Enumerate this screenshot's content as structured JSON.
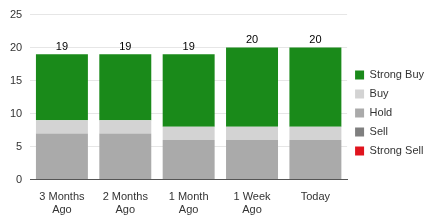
{
  "chart_data": {
    "type": "bar",
    "stacked": true,
    "categories": [
      "3 Months Ago",
      "2 Months Ago",
      "1 Month Ago",
      "1 Week Ago",
      "Today"
    ],
    "series": [
      {
        "name": "Strong Sell",
        "color": "#e0141e",
        "values": [
          0,
          0,
          0,
          0,
          0
        ]
      },
      {
        "name": "Sell",
        "color": "#7f7f7f",
        "values": [
          0,
          0,
          0,
          0,
          0
        ]
      },
      {
        "name": "Hold",
        "color": "#aaaaaa",
        "values": [
          7,
          7,
          6,
          6,
          6
        ]
      },
      {
        "name": "Buy",
        "color": "#d3d3d3",
        "values": [
          2,
          2,
          2,
          2,
          2
        ]
      },
      {
        "name": "Strong Buy",
        "color": "#1a8a1a",
        "values": [
          10,
          10,
          11,
          12,
          12
        ]
      }
    ],
    "totals": [
      19,
      19,
      19,
      20,
      20
    ],
    "ylim": [
      0,
      25
    ],
    "yticks": [
      0,
      5,
      10,
      15,
      20,
      25
    ],
    "grid": true,
    "legend": "right"
  }
}
